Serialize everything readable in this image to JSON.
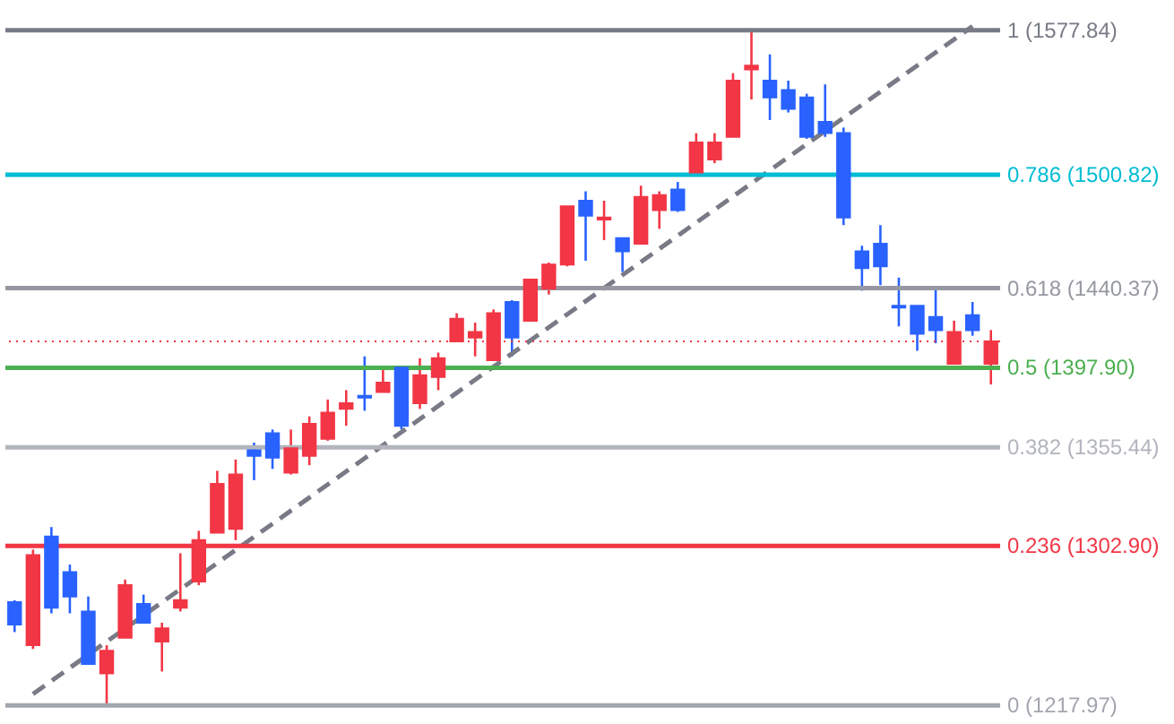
{
  "chart_data": {
    "type": "candlestick",
    "categories": [
      null,
      null,
      null,
      null,
      null,
      null,
      null,
      null,
      null,
      null,
      null,
      null,
      null,
      null,
      null,
      null,
      null,
      null,
      null,
      null,
      null,
      null,
      null,
      null,
      null,
      null,
      null,
      null,
      null,
      null,
      null,
      null,
      null,
      null,
      null,
      null,
      null,
      null,
      null,
      null,
      null,
      null,
      null,
      null,
      null,
      null,
      null,
      null,
      null,
      null,
      null,
      null,
      null,
      null
    ],
    "ohlc": [
      [
        1273,
        1274,
        1257,
        1261
      ],
      [
        1250,
        1301,
        1248,
        1298
      ],
      [
        1308,
        1313,
        1267,
        1270
      ],
      [
        1289,
        1293,
        1267,
        1276
      ],
      [
        1268,
        1276,
        1240,
        1240
      ],
      [
        1235,
        1250,
        1218,
        1247
      ],
      [
        1254,
        1285,
        1254,
        1282
      ],
      [
        1272,
        1277,
        1262,
        1262
      ],
      [
        1252,
        1262,
        1236,
        1259
      ],
      [
        1270,
        1299,
        1268,
        1274
      ],
      [
        1284,
        1311,
        1282,
        1306
      ],
      [
        1310,
        1343,
        1310,
        1336
      ],
      [
        1312,
        1349,
        1306,
        1341
      ],
      [
        1354,
        1358,
        1338,
        1351
      ],
      [
        1363,
        1365,
        1344,
        1350
      ],
      [
        1342,
        1365,
        1341,
        1355
      ],
      [
        1351,
        1372,
        1346,
        1368
      ],
      [
        1360,
        1381,
        1359,
        1374
      ],
      [
        1376,
        1386,
        1367,
        1379
      ],
      [
        1383,
        1404,
        1375,
        1382
      ],
      [
        1385,
        1398,
        1385,
        1390
      ],
      [
        1398,
        1398,
        1365,
        1367
      ],
      [
        1379,
        1403,
        1376,
        1394
      ],
      [
        1393,
        1406,
        1386,
        1403
      ],
      [
        1412,
        1427,
        1412,
        1424
      ],
      [
        1414,
        1422,
        1404,
        1417
      ],
      [
        1402,
        1429,
        1402,
        1427
      ],
      [
        1433,
        1434,
        1404,
        1414
      ],
      [
        1423,
        1445,
        1423,
        1445
      ],
      [
        1440,
        1454,
        1437,
        1453
      ],
      [
        1453,
        1484,
        1452,
        1484
      ],
      [
        1487,
        1492,
        1455,
        1479
      ],
      [
        1477,
        1487,
        1466,
        1478
      ],
      [
        1467,
        1467,
        1449,
        1460
      ],
      [
        1464,
        1495,
        1464,
        1489
      ],
      [
        1482,
        1492,
        1472,
        1490
      ],
      [
        1493,
        1497,
        1481,
        1482
      ],
      [
        1502,
        1523,
        1500,
        1518
      ],
      [
        1509,
        1523,
        1507,
        1518
      ],
      [
        1521,
        1555,
        1521,
        1551
      ],
      [
        1557,
        1578,
        1541,
        1559
      ],
      [
        1551,
        1565,
        1530,
        1542
      ],
      [
        1546,
        1551,
        1534,
        1536
      ],
      [
        1542,
        1544,
        1520,
        1521
      ],
      [
        1529,
        1549,
        1521,
        1523
      ],
      [
        1523,
        1526,
        1474,
        1478
      ],
      [
        1460,
        1463,
        1439,
        1451
      ],
      [
        1464,
        1474,
        1442,
        1452
      ],
      [
        1431,
        1446,
        1420,
        1430
      ],
      [
        1431,
        1431,
        1407,
        1416
      ],
      [
        1425,
        1441,
        1411,
        1418
      ],
      [
        1400,
        1423,
        1400,
        1417
      ],
      [
        1426,
        1433,
        1415,
        1418
      ],
      [
        1400,
        1418,
        1389,
        1412
      ]
    ],
    "colors": [
      "#2962ff",
      "#f23645",
      "#2962ff",
      "#2962ff",
      "#2962ff",
      "#f23645",
      "#f23645",
      "#2962ff",
      "#f23645",
      "#f23645",
      "#f23645",
      "#f23645",
      "#f23645",
      "#2962ff",
      "#2962ff",
      "#f23645",
      "#f23645",
      "#f23645",
      "#f23645",
      "#2962ff",
      "#f23645",
      "#2962ff",
      "#f23645",
      "#f23645",
      "#f23645",
      "#f23645",
      "#f23645",
      "#2962ff",
      "#f23645",
      "#f23645",
      "#f23645",
      "#2962ff",
      "#f23645",
      "#2962ff",
      "#f23645",
      "#f23645",
      "#2962ff",
      "#f23645",
      "#f23645",
      "#f23645",
      "#f23645",
      "#2962ff",
      "#2962ff",
      "#2962ff",
      "#2962ff",
      "#2962ff",
      "#2962ff",
      "#2962ff",
      "#2962ff",
      "#2962ff",
      "#2962ff",
      "#f23645",
      "#2962ff",
      "#f23645"
    ],
    "series": [
      {
        "type": "line",
        "color": "#787b86",
        "line_style": "dashed",
        "values": [
          null,
          1224,
          null,
          null,
          null,
          null,
          null,
          null,
          null,
          null,
          null,
          null,
          null,
          null,
          null,
          null,
          null,
          null,
          null,
          null,
          null,
          null,
          null,
          null,
          null,
          null,
          null,
          null,
          null,
          null,
          null,
          null,
          null,
          null,
          null,
          null,
          null,
          null,
          null,
          null,
          null,
          null,
          null,
          null,
          null,
          null,
          null,
          null,
          null,
          null,
          null,
          null,
          1580,
          null
        ]
      }
    ],
    "ylim": [
      1208,
      1594
    ],
    "tick_labels": false,
    "ref_lines": [
      {
        "axis": "y",
        "value": 1577.84,
        "label": "1 (1577.84)",
        "color": "#787b86"
      },
      {
        "axis": "y",
        "value": 1500.82,
        "label": "0.786 (1500.82)",
        "color": "#00bcd4"
      },
      {
        "axis": "y",
        "value": 1440.37,
        "label": "0.618 (1440.37)",
        "color": "#9598a1"
      },
      {
        "axis": "y",
        "value": 1397.9,
        "label": "0.5 (1397.90)",
        "color": "#4caf50"
      },
      {
        "axis": "y",
        "value": 1355.44,
        "label": "0.382 (1355.44)",
        "color": "#b2b5be"
      },
      {
        "axis": "y",
        "value": 1302.9,
        "label": "0.236 (1302.90)",
        "color": "#f23645"
      },
      {
        "axis": "y",
        "value": 1217.97,
        "label": "0 (1217.97)",
        "color": "#a3a6af"
      },
      {
        "axis": "y",
        "value": 1412,
        "label": null,
        "color": "#f23645",
        "line_style": "dotted"
      }
    ]
  }
}
